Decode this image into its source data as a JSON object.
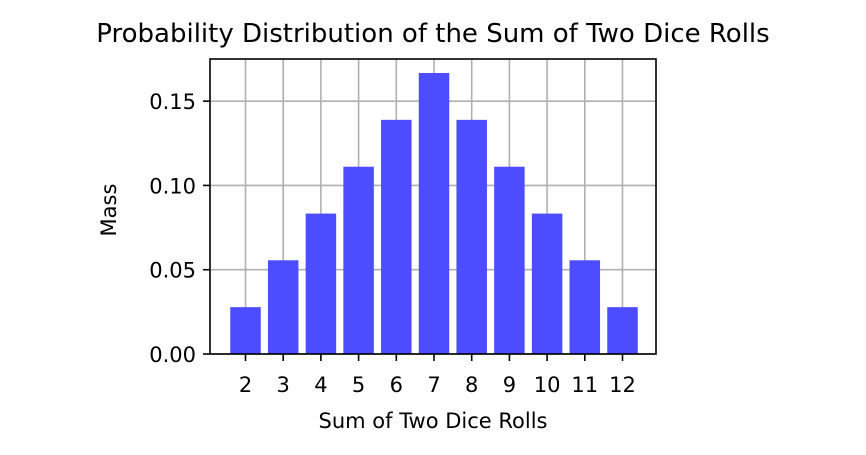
{
  "chart_data": {
    "type": "bar",
    "title": "Probability Distribution of the Sum of Two Dice Rolls",
    "xlabel": "Sum of Two Dice Rolls",
    "ylabel": "Mass",
    "categories": [
      "2",
      "3",
      "4",
      "5",
      "6",
      "7",
      "8",
      "9",
      "10",
      "11",
      "12"
    ],
    "values": [
      0.0278,
      0.0556,
      0.0833,
      0.1111,
      0.1389,
      0.1667,
      0.1389,
      0.1111,
      0.0833,
      0.0556,
      0.0278
    ],
    "ylim": [
      0,
      0.175
    ],
    "yticks": [
      0.0,
      0.05,
      0.1,
      0.15
    ],
    "ytick_labels": [
      "0.00",
      "0.05",
      "0.10",
      "0.15"
    ],
    "grid": true,
    "legend": false,
    "colors": {
      "bar": "#4d4dff",
      "grid": "#b0b0b0",
      "axes": "#000000"
    }
  }
}
